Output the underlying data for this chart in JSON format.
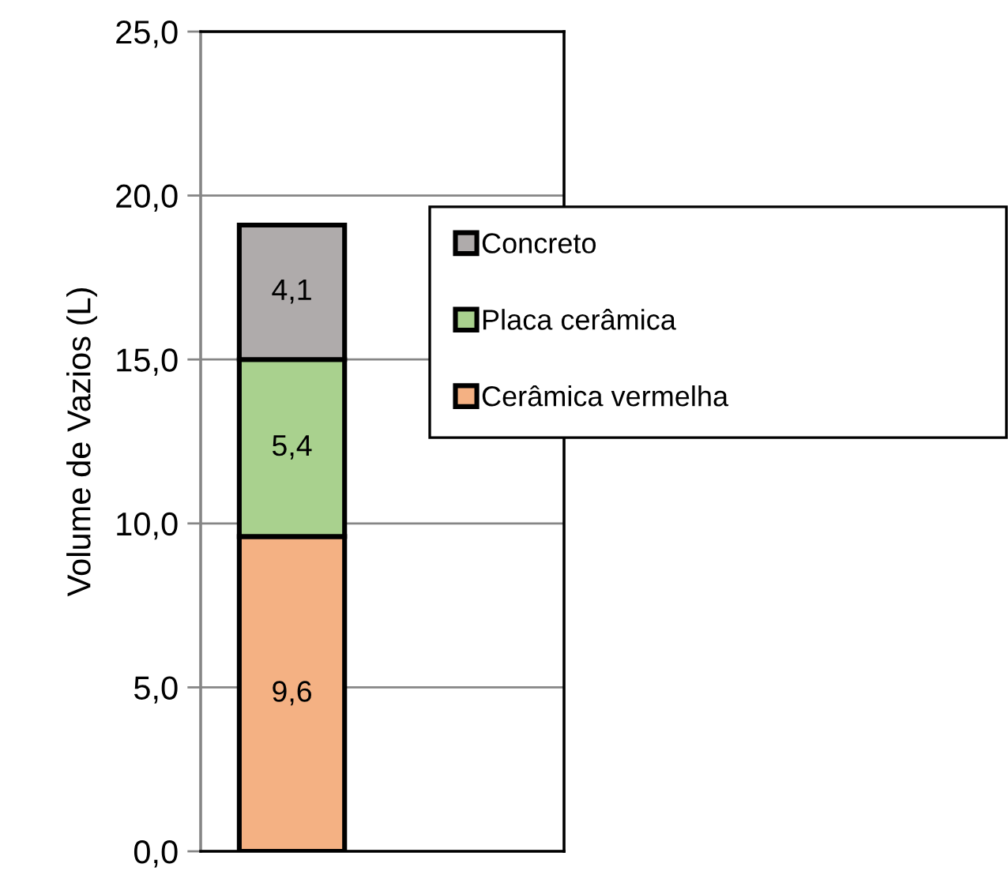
{
  "chart_data": {
    "type": "bar",
    "stacked": true,
    "ylabel": "Volume de Vazios (L)",
    "categories": [
      null
    ],
    "series": [
      {
        "name": "Cerâmica vermelha",
        "color": "#f4b183",
        "values": [
          9.6
        ],
        "value_labels": [
          "9,6"
        ]
      },
      {
        "name": "Placa cerâmica",
        "color": "#a9d18e",
        "values": [
          5.4
        ],
        "value_labels": [
          "5,4"
        ]
      },
      {
        "name": "Concreto",
        "color": "#afabab",
        "values": [
          4.1
        ],
        "value_labels": [
          "4,1"
        ]
      }
    ],
    "ylim": [
      0,
      25
    ],
    "yticks": [
      {
        "value": 0,
        "label": "0,0"
      },
      {
        "value": 5,
        "label": "5,0"
      },
      {
        "value": 10,
        "label": "10,0"
      },
      {
        "value": 15,
        "label": "15,0"
      },
      {
        "value": 20,
        "label": "20,0"
      },
      {
        "value": 25,
        "label": "25,0"
      }
    ],
    "grid": "y",
    "legend": "right"
  }
}
